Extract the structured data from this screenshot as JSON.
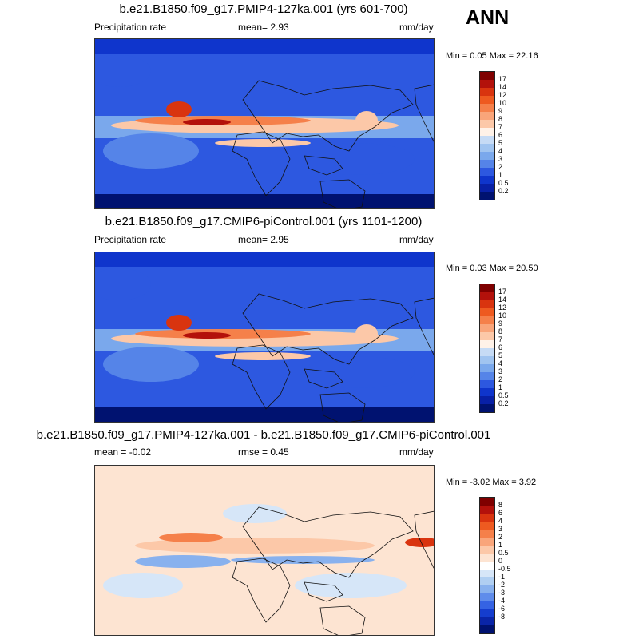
{
  "season": "ANN",
  "panels": [
    {
      "title": "b.e21.B1850.f09_g17.PMIP4-127ka.001 (yrs 601-700)",
      "left_label": "Precipitation rate",
      "mid_label": "mean=   2.93",
      "units": "mm/day",
      "minmax": "Min =   0.05 Max =  22.16",
      "map_kind": "abs",
      "colorbar": {
        "colors": [
          "#7f0000",
          "#b3110b",
          "#d9340f",
          "#ee5a20",
          "#f5804a",
          "#f9a57a",
          "#fcc8a8",
          "#fff2e8",
          "#c6dbf5",
          "#a0c4f0",
          "#7aa8ec",
          "#5584e8",
          "#2d58e0",
          "#0f35cc",
          "#0820a6",
          "#001270"
        ],
        "ticks": [
          "17",
          "14",
          "12",
          "10",
          "9",
          "8",
          "7",
          "6",
          "5",
          "4",
          "3",
          "2",
          "1",
          "0.5",
          "0.2"
        ]
      }
    },
    {
      "title": "b.e21.B1850.f09_g17.CMIP6-piControl.001 (yrs 1101-1200)",
      "left_label": "Precipitation rate",
      "mid_label": "mean=   2.95",
      "units": "mm/day",
      "minmax": "Min =   0.03 Max =  20.50",
      "map_kind": "abs",
      "colorbar": {
        "colors": [
          "#7f0000",
          "#b3110b",
          "#d9340f",
          "#ee5a20",
          "#f5804a",
          "#f9a57a",
          "#fcc8a8",
          "#fff2e8",
          "#c6dbf5",
          "#a0c4f0",
          "#7aa8ec",
          "#5584e8",
          "#2d58e0",
          "#0f35cc",
          "#0820a6",
          "#001270"
        ],
        "ticks": [
          "17",
          "14",
          "12",
          "10",
          "9",
          "8",
          "7",
          "6",
          "5",
          "4",
          "3",
          "2",
          "1",
          "0.5",
          "0.2"
        ]
      }
    },
    {
      "title": "b.e21.B1850.f09_g17.PMIP4-127ka.001 - b.e21.B1850.f09_g17.CMIP6-piControl.001",
      "left_label": "mean =  -0.02",
      "mid_label": "rmse =   0.45",
      "units": "mm/day",
      "minmax": "Min =  -3.02 Max =   3.92",
      "map_kind": "diff",
      "colorbar": {
        "colors": [
          "#7f0000",
          "#b3110b",
          "#d9340f",
          "#ee5a20",
          "#f5804a",
          "#f9a57a",
          "#fcc8a8",
          "#fde4d2",
          "#ffffff",
          "#d6e6f8",
          "#b0cff2",
          "#88b1ee",
          "#5f8ceb",
          "#3563e3",
          "#153dce",
          "#0a25a8",
          "#001270"
        ],
        "ticks": [
          "8",
          "6",
          "4",
          "3",
          "2",
          "1",
          "0.5",
          "0",
          "-0.5",
          "-1",
          "-2",
          "-3",
          "-4",
          "-6",
          "-8"
        ]
      }
    }
  ]
}
